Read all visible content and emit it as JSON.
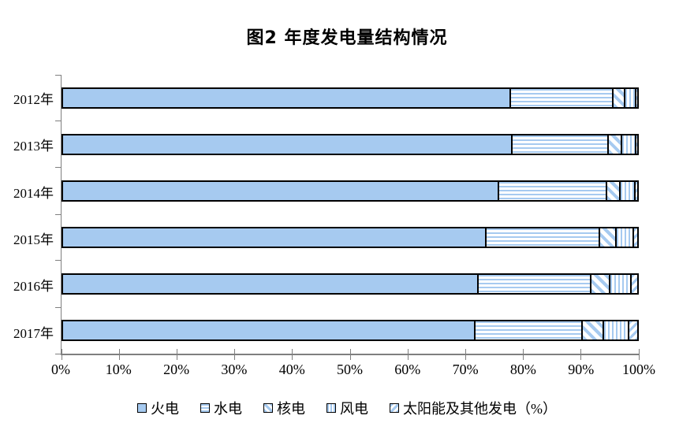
{
  "title": "图2  年度发电量结构情况",
  "chart_data": {
    "type": "bar",
    "variant": "horizontal-stacked",
    "title": "图2  年度发电量结构情况",
    "categories": [
      "2012年",
      "2013年",
      "2014年",
      "2015年",
      "2016年",
      "2017年"
    ],
    "series": [
      {
        "name": "火电",
        "pattern": "solid",
        "values": [
          78.0,
          78.3,
          75.9,
          73.8,
          72.4,
          71.8
        ]
      },
      {
        "name": "水电",
        "pattern": "horizontal-stripes",
        "values": [
          17.9,
          16.8,
          18.9,
          19.8,
          19.6,
          18.7
        ]
      },
      {
        "name": "核电",
        "pattern": "diagonal-down",
        "values": [
          2.0,
          2.3,
          2.3,
          2.8,
          3.3,
          3.8
        ]
      },
      {
        "name": "风电",
        "pattern": "vertical-stripes",
        "values": [
          1.9,
          2.4,
          2.6,
          3.1,
          3.8,
          4.3
        ]
      },
      {
        "name": "太阳能及其他发电（%）",
        "pattern": "diagonal-up",
        "values": [
          0.2,
          0.2,
          0.3,
          0.5,
          0.9,
          1.4
        ]
      }
    ],
    "xlim": [
      0,
      100
    ],
    "x_tick_labels": [
      "0%",
      "10%",
      "20%",
      "30%",
      "40%",
      "50%",
      "60%",
      "70%",
      "80%",
      "90%",
      "100%"
    ],
    "xlabel": "",
    "ylabel": "",
    "grid": false,
    "legend_position": "bottom",
    "colors": {
      "fill": "#A6CAF0",
      "bar_border": "#000000",
      "axis": "#7F7F7F",
      "background": "#FFFFFF"
    }
  }
}
